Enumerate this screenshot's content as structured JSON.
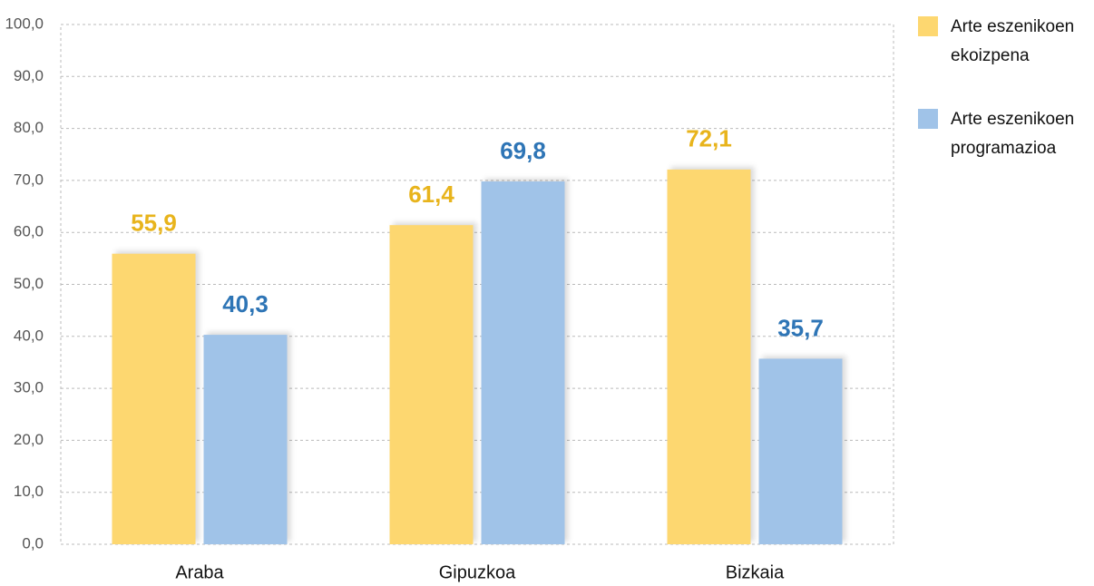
{
  "chart_data": {
    "type": "bar",
    "categories": [
      "Araba",
      "Gipuzkoa",
      "Bizkaia"
    ],
    "series": [
      {
        "name": "Arte eszenikoen ekoizpena",
        "color": "#fdd770",
        "label_color": "#e8b41c",
        "values": [
          55.9,
          61.4,
          72.1
        ],
        "value_labels": [
          "55,9",
          "61,4",
          "72,1"
        ]
      },
      {
        "name": "Arte eszenikoen programazioa",
        "color": "#a0c3e8",
        "label_color": "#2e75b6",
        "values": [
          40.3,
          69.8,
          35.7
        ],
        "value_labels": [
          "40,3",
          "69,8",
          "35,7"
        ]
      }
    ],
    "ylim": [
      0,
      100
    ],
    "yticks": [
      {
        "value": 0,
        "label": "0,0"
      },
      {
        "value": 10,
        "label": "10,0"
      },
      {
        "value": 20,
        "label": "20,0"
      },
      {
        "value": 30,
        "label": "30,0"
      },
      {
        "value": 40,
        "label": "40,0"
      },
      {
        "value": 50,
        "label": "50,0"
      },
      {
        "value": 60,
        "label": "60,0"
      },
      {
        "value": 70,
        "label": "70,0"
      },
      {
        "value": 80,
        "label": "80,0"
      },
      {
        "value": 90,
        "label": "90,0"
      },
      {
        "value": 100,
        "label": "100,0"
      }
    ],
    "grid": true,
    "legend": "right"
  }
}
